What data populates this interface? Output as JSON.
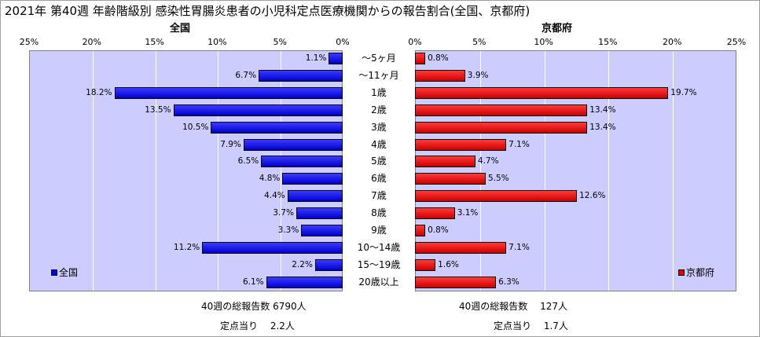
{
  "title": "2021年 第40週 年齢階級別 感染性胃腸炎患者の小児科定点医療機関からの報告割合(全国、京都府)",
  "chart_data": {
    "type": "bar",
    "categories": [
      "～5ヶ月",
      "～11ヶ月",
      "1歳",
      "2歳",
      "3歳",
      "4歳",
      "5歳",
      "6歳",
      "7歳",
      "8歳",
      "9歳",
      "10～14歳",
      "15～19歳",
      "20歳以上"
    ],
    "series": [
      {
        "name": "全国",
        "color": "#0000dd",
        "values": [
          1.1,
          6.7,
          18.2,
          13.5,
          10.5,
          7.9,
          6.5,
          4.8,
          4.4,
          3.7,
          3.3,
          11.2,
          2.2,
          6.1
        ]
      },
      {
        "name": "京都府",
        "color": "#dd0000",
        "values": [
          0.8,
          3.9,
          19.7,
          13.4,
          13.4,
          7.1,
          4.7,
          5.5,
          12.6,
          3.1,
          0.8,
          7.1,
          1.6,
          6.3
        ]
      }
    ],
    "xlim": [
      0,
      25
    ],
    "ticks": [
      "25%",
      "20%",
      "15%",
      "10%",
      "5%",
      "0%",
      "0%",
      "5%",
      "10%",
      "15%",
      "20%",
      "25%"
    ],
    "panel_titles": [
      "全国",
      "京都府"
    ],
    "legend": [
      "全国",
      "京都府"
    ],
    "grid": true
  },
  "footer": {
    "left_line1": "40週の総報告数 6790人",
    "left_line2": "定点当り　 2.2人",
    "right_line1": "40週の総報告数　 127人",
    "right_line2": "定点当り　 1.7人"
  }
}
